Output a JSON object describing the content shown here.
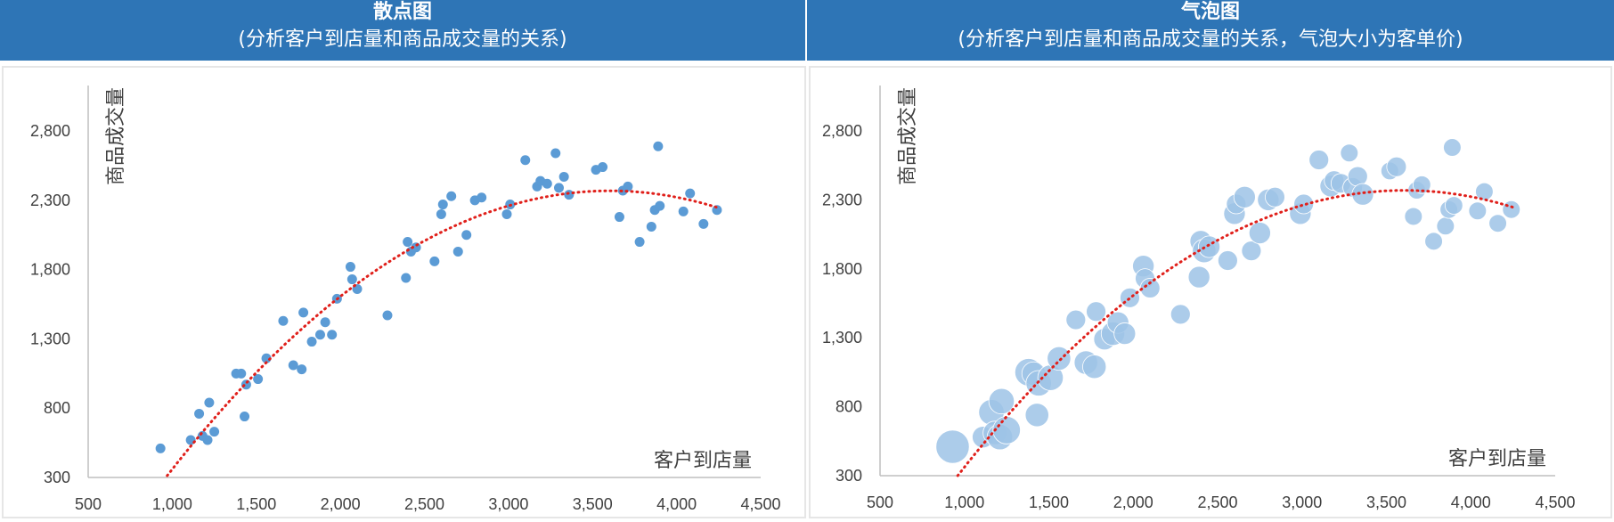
{
  "colors": {
    "header_bg": "#2e75b6",
    "header_text": "#ffffff",
    "point": "#5b9bd5",
    "bubble": "#9dc3e6",
    "trendline": "#e0201b",
    "axis": "#bfbfbf",
    "label": "#404040"
  },
  "headers": {
    "left": {
      "title": "散点图",
      "subtitle": "(分析客户到店量和商品成交量的关系)"
    },
    "right": {
      "title": "气泡图",
      "subtitle": "(分析客户到店量和商品成交量的关系，气泡大小为客单价)"
    }
  },
  "chart_data": [
    {
      "type": "scatter",
      "title": "散点图",
      "subtitle": "(分析客户到店量和商品成交量的关系)",
      "xlabel": "客户到店量",
      "ylabel": "商品成交量",
      "xlim": [
        500,
        4500
      ],
      "ylim": [
        300,
        3000
      ],
      "x_ticks": [
        "500",
        "1,000",
        "1,500",
        "2,000",
        "2,500",
        "3,000",
        "3,500",
        "4,000",
        "4,500"
      ],
      "y_ticks": [
        "300",
        "800",
        "1,300",
        "1,800",
        "2,300",
        "2,800"
      ],
      "grid": false,
      "trendline": {
        "type": "polynomial",
        "style": "dotted",
        "color": "#e0201b",
        "x_range": [
          1000,
          4250
        ]
      },
      "series": [
        {
          "points": [
            {
              "x": 930,
              "y": 510
            },
            {
              "x": 1110,
              "y": 570
            },
            {
              "x": 1160,
              "y": 760
            },
            {
              "x": 1180,
              "y": 600
            },
            {
              "x": 1210,
              "y": 570
            },
            {
              "x": 1220,
              "y": 840
            },
            {
              "x": 1250,
              "y": 630
            },
            {
              "x": 1380,
              "y": 1050
            },
            {
              "x": 1410,
              "y": 1050
            },
            {
              "x": 1430,
              "y": 740
            },
            {
              "x": 1440,
              "y": 970
            },
            {
              "x": 1510,
              "y": 1010
            },
            {
              "x": 1560,
              "y": 1160
            },
            {
              "x": 1660,
              "y": 1430
            },
            {
              "x": 1720,
              "y": 1110
            },
            {
              "x": 1770,
              "y": 1080
            },
            {
              "x": 1780,
              "y": 1490
            },
            {
              "x": 1830,
              "y": 1280
            },
            {
              "x": 1880,
              "y": 1330
            },
            {
              "x": 1910,
              "y": 1420
            },
            {
              "x": 1950,
              "y": 1330
            },
            {
              "x": 1980,
              "y": 1590
            },
            {
              "x": 2060,
              "y": 1820
            },
            {
              "x": 2070,
              "y": 1730
            },
            {
              "x": 2100,
              "y": 1660
            },
            {
              "x": 2280,
              "y": 1470
            },
            {
              "x": 2390,
              "y": 1740
            },
            {
              "x": 2400,
              "y": 2000
            },
            {
              "x": 2420,
              "y": 1930
            },
            {
              "x": 2450,
              "y": 1960
            },
            {
              "x": 2560,
              "y": 1860
            },
            {
              "x": 2600,
              "y": 2200
            },
            {
              "x": 2610,
              "y": 2270
            },
            {
              "x": 2660,
              "y": 2330
            },
            {
              "x": 2700,
              "y": 1930
            },
            {
              "x": 2750,
              "y": 2050
            },
            {
              "x": 2800,
              "y": 2300
            },
            {
              "x": 2840,
              "y": 2320
            },
            {
              "x": 2990,
              "y": 2200
            },
            {
              "x": 3010,
              "y": 2270
            },
            {
              "x": 3100,
              "y": 2590
            },
            {
              "x": 3170,
              "y": 2400
            },
            {
              "x": 3190,
              "y": 2440
            },
            {
              "x": 3230,
              "y": 2420
            },
            {
              "x": 3280,
              "y": 2640
            },
            {
              "x": 3300,
              "y": 2390
            },
            {
              "x": 3330,
              "y": 2470
            },
            {
              "x": 3360,
              "y": 2340
            },
            {
              "x": 3520,
              "y": 2520
            },
            {
              "x": 3560,
              "y": 2540
            },
            {
              "x": 3660,
              "y": 2180
            },
            {
              "x": 3680,
              "y": 2370
            },
            {
              "x": 3710,
              "y": 2400
            },
            {
              "x": 3780,
              "y": 2000
            },
            {
              "x": 3850,
              "y": 2110
            },
            {
              "x": 3870,
              "y": 2230
            },
            {
              "x": 3890,
              "y": 2690
            },
            {
              "x": 3900,
              "y": 2260
            },
            {
              "x": 4040,
              "y": 2220
            },
            {
              "x": 4080,
              "y": 2350
            },
            {
              "x": 4160,
              "y": 2130
            },
            {
              "x": 4240,
              "y": 2230
            }
          ]
        }
      ]
    },
    {
      "type": "scatter",
      "title": "气泡图",
      "subtitle": "(分析客户到店量和商品成交量的关系，气泡大小为客单价)",
      "xlabel": "客户到店量",
      "ylabel": "商品成交量",
      "xlim": [
        500,
        4500
      ],
      "ylim": [
        300,
        3000
      ],
      "x_ticks": [
        "500",
        "1,000",
        "1,500",
        "2,000",
        "2,500",
        "3,000",
        "3,500",
        "4,000",
        "4,500"
      ],
      "y_ticks": [
        "300",
        "800",
        "1,300",
        "1,800",
        "2,300",
        "2,800"
      ],
      "grid": false,
      "bubble_size_meaning": "客单价",
      "trendline": {
        "type": "polynomial",
        "style": "dotted",
        "color": "#e0201b",
        "x_range": [
          1000,
          4250
        ]
      },
      "series": [
        {
          "points": [
            {
              "x": 930,
              "y": 510,
              "size": 3.4
            },
            {
              "x": 1110,
              "y": 580,
              "size": 2.2
            },
            {
              "x": 1160,
              "y": 760,
              "size": 2.6
            },
            {
              "x": 1180,
              "y": 610,
              "size": 2.4
            },
            {
              "x": 1210,
              "y": 580,
              "size": 2.6
            },
            {
              "x": 1220,
              "y": 840,
              "size": 2.6
            },
            {
              "x": 1250,
              "y": 630,
              "size": 2.8
            },
            {
              "x": 1380,
              "y": 1050,
              "size": 2.8
            },
            {
              "x": 1410,
              "y": 1040,
              "size": 2.4
            },
            {
              "x": 1430,
              "y": 740,
              "size": 2.4
            },
            {
              "x": 1440,
              "y": 970,
              "size": 2.6
            },
            {
              "x": 1510,
              "y": 1010,
              "size": 2.6
            },
            {
              "x": 1560,
              "y": 1150,
              "size": 2.4
            },
            {
              "x": 1660,
              "y": 1430,
              "size": 2.0
            },
            {
              "x": 1720,
              "y": 1120,
              "size": 2.4
            },
            {
              "x": 1770,
              "y": 1090,
              "size": 2.4
            },
            {
              "x": 1780,
              "y": 1490,
              "size": 2.0
            },
            {
              "x": 1830,
              "y": 1290,
              "size": 2.2
            },
            {
              "x": 1880,
              "y": 1330,
              "size": 2.4
            },
            {
              "x": 1910,
              "y": 1410,
              "size": 2.2
            },
            {
              "x": 1950,
              "y": 1330,
              "size": 2.2
            },
            {
              "x": 1980,
              "y": 1590,
              "size": 2.0
            },
            {
              "x": 2060,
              "y": 1820,
              "size": 2.2
            },
            {
              "x": 2070,
              "y": 1730,
              "size": 2.0
            },
            {
              "x": 2100,
              "y": 1660,
              "size": 2.0
            },
            {
              "x": 2280,
              "y": 1470,
              "size": 2.0
            },
            {
              "x": 2390,
              "y": 1740,
              "size": 2.2
            },
            {
              "x": 2400,
              "y": 2000,
              "size": 2.2
            },
            {
              "x": 2420,
              "y": 1930,
              "size": 2.4
            },
            {
              "x": 2450,
              "y": 1960,
              "size": 2.2
            },
            {
              "x": 2560,
              "y": 1860,
              "size": 2.0
            },
            {
              "x": 2600,
              "y": 2200,
              "size": 2.2
            },
            {
              "x": 2610,
              "y": 2270,
              "size": 2.0
            },
            {
              "x": 2660,
              "y": 2320,
              "size": 2.2
            },
            {
              "x": 2700,
              "y": 1930,
              "size": 2.0
            },
            {
              "x": 2750,
              "y": 2060,
              "size": 2.2
            },
            {
              "x": 2800,
              "y": 2300,
              "size": 2.2
            },
            {
              "x": 2840,
              "y": 2320,
              "size": 2.0
            },
            {
              "x": 2990,
              "y": 2200,
              "size": 2.2
            },
            {
              "x": 3010,
              "y": 2270,
              "size": 2.0
            },
            {
              "x": 3100,
              "y": 2590,
              "size": 2.0
            },
            {
              "x": 3170,
              "y": 2400,
              "size": 2.2
            },
            {
              "x": 3190,
              "y": 2440,
              "size": 2.0
            },
            {
              "x": 3230,
              "y": 2420,
              "size": 2.0
            },
            {
              "x": 3280,
              "y": 2640,
              "size": 1.8
            },
            {
              "x": 3300,
              "y": 2390,
              "size": 2.0
            },
            {
              "x": 3330,
              "y": 2470,
              "size": 2.0
            },
            {
              "x": 3360,
              "y": 2340,
              "size": 2.2
            },
            {
              "x": 3520,
              "y": 2510,
              "size": 1.8
            },
            {
              "x": 3560,
              "y": 2540,
              "size": 2.0
            },
            {
              "x": 3660,
              "y": 2180,
              "size": 1.8
            },
            {
              "x": 3680,
              "y": 2370,
              "size": 1.8
            },
            {
              "x": 3710,
              "y": 2410,
              "size": 1.8
            },
            {
              "x": 3780,
              "y": 2000,
              "size": 1.8
            },
            {
              "x": 3850,
              "y": 2110,
              "size": 1.8
            },
            {
              "x": 3870,
              "y": 2230,
              "size": 1.8
            },
            {
              "x": 3890,
              "y": 2680,
              "size": 1.8
            },
            {
              "x": 3900,
              "y": 2260,
              "size": 1.8
            },
            {
              "x": 4040,
              "y": 2220,
              "size": 1.8
            },
            {
              "x": 4080,
              "y": 2360,
              "size": 1.8
            },
            {
              "x": 4160,
              "y": 2130,
              "size": 1.8
            },
            {
              "x": 4240,
              "y": 2230,
              "size": 1.8
            }
          ]
        }
      ]
    }
  ]
}
